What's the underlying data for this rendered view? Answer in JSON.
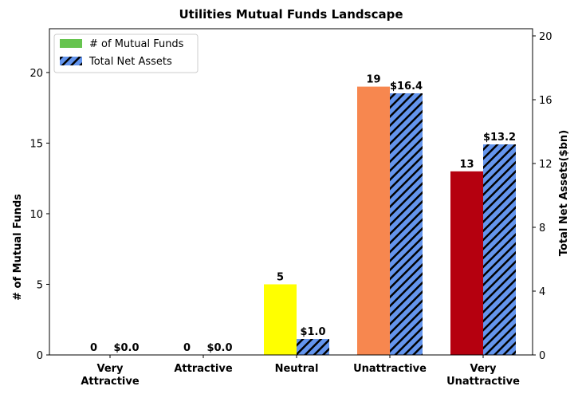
{
  "chart_data": {
    "type": "bar",
    "title": "Utilities Mutual Funds Landscape",
    "categories": [
      "Very Attractive",
      "Attractive",
      "Neutral",
      "Unattractive",
      "Very Unattractive"
    ],
    "series": [
      {
        "name": "# of Mutual Funds",
        "color": "#66c44f",
        "bar_colors": [
          "#66c44f",
          "#a8d84f",
          "#ffff00",
          "#f7874f",
          "#b5000f"
        ],
        "values": [
          0,
          0,
          5,
          19,
          13
        ]
      },
      {
        "name": "Total Net Assets",
        "color": "#6495ed",
        "hatch": true,
        "axis": "y2",
        "values": [
          0.0,
          0.0,
          1.0,
          16.4,
          13.2
        ],
        "value_labels": [
          "$0.0",
          "$0.0",
          "$1.0",
          "$16.4",
          "$13.2"
        ]
      }
    ],
    "ylabel": "# of Mutual Funds",
    "y2label": "Total Net Assets($bn)",
    "ylim": [
      0,
      23.1
    ],
    "yticks": [
      0,
      5,
      10,
      15,
      20
    ],
    "y2lim": [
      0,
      20.45
    ],
    "y2ticks": [
      0,
      4,
      8,
      12,
      16,
      20
    ],
    "legend": "upper left"
  }
}
